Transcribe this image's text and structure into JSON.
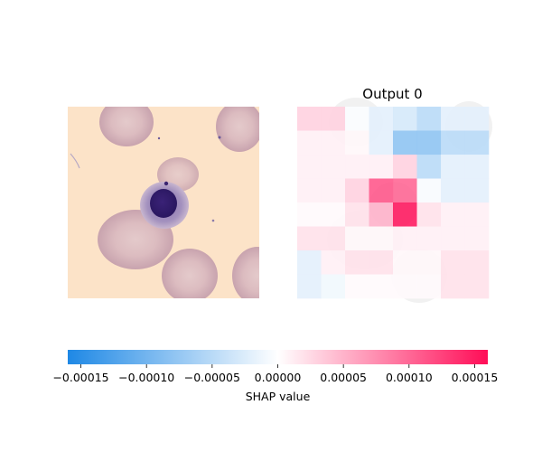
{
  "chart_data": {
    "type": "heatmap",
    "panels": [
      {
        "kind": "image",
        "title": "",
        "image_description_colors": {
          "background": "#fce3c8",
          "rbc_fill": "#dcbcc0",
          "rbc_edge": "#c9a2ad",
          "nucleus": "#2e1a68",
          "cytoplasm": "#9a82b4"
        }
      },
      {
        "kind": "shap_heatmap",
        "title": "Output 0",
        "grid_size": 8,
        "values": [
          [
            3e-05,
            3e-05,
            -3e-06,
            -2e-05,
            -3e-05,
            -5e-05,
            -2e-05,
            -2e-05
          ],
          [
            1e-05,
            1e-05,
            5e-06,
            -2e-05,
            -8e-05,
            -8e-05,
            -5e-05,
            -5e-05
          ],
          [
            1e-05,
            1e-05,
            1e-05,
            1e-05,
            3e-05,
            -5e-05,
            -2e-05,
            -2e-05
          ],
          [
            1e-05,
            1e-05,
            3e-05,
            0.00011,
            0.0001,
            -5e-06,
            -2e-05,
            -2e-05
          ],
          [
            3e-06,
            3e-06,
            2e-05,
            5e-05,
            0.00015,
            2e-05,
            1e-05,
            1e-05
          ],
          [
            2e-05,
            2e-05,
            5e-06,
            5e-06,
            1e-05,
            1e-05,
            1e-05,
            1e-05
          ],
          [
            -2e-05,
            1e-05,
            2e-05,
            2e-05,
            5e-06,
            5e-06,
            2e-05,
            2e-05
          ],
          [
            -2e-05,
            -1e-05,
            3e-06,
            3e-06,
            3e-06,
            3e-06,
            2e-05,
            2e-05
          ]
        ]
      }
    ],
    "colorbar": {
      "label": "SHAP value",
      "vmin": -0.00016,
      "vmax": 0.00016,
      "ticks": [
        -0.00015,
        -0.0001,
        -5e-05,
        0,
        5e-05,
        0.0001,
        0.00015
      ],
      "tick_labels": [
        "−0.00015",
        "−0.00010",
        "−0.00005",
        "0.00000",
        "0.00005",
        "0.00010",
        "0.00015"
      ],
      "colors": {
        "negative": "#1e88e5",
        "zero": "#ffffff",
        "positive": "#ff0d57"
      }
    }
  }
}
